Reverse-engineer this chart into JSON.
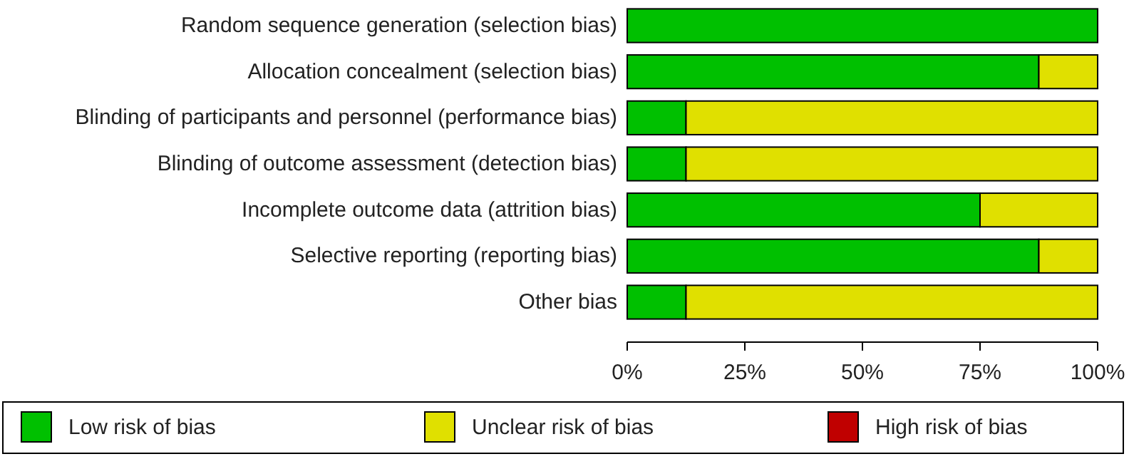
{
  "chart_data": {
    "type": "bar",
    "orientation": "horizontal",
    "stacked": true,
    "categories": [
      "Random sequence generation (selection bias)",
      "Allocation concealment (selection bias)",
      "Blinding of participants and personnel (performance bias)",
      "Blinding of outcome assessment (detection bias)",
      "Incomplete outcome data (attrition bias)",
      "Selective reporting (reporting bias)",
      "Other bias"
    ],
    "series": [
      {
        "name": "Low risk of bias",
        "color": "#00c000",
        "values": [
          100,
          87.5,
          12.5,
          12.5,
          75,
          87.5,
          12.5
        ]
      },
      {
        "name": "Unclear risk of bias",
        "color": "#e0e000",
        "values": [
          0,
          12.5,
          87.5,
          87.5,
          25,
          12.5,
          87.5
        ]
      },
      {
        "name": "High risk of bias",
        "color": "#c00000",
        "values": [
          0,
          0,
          0,
          0,
          0,
          0,
          0
        ]
      }
    ],
    "xlim": [
      0,
      100
    ],
    "xticks": [
      {
        "value": 0,
        "label": "0%"
      },
      {
        "value": 25,
        "label": "25%"
      },
      {
        "value": 50,
        "label": "50%"
      },
      {
        "value": 75,
        "label": "75%"
      },
      {
        "value": 100,
        "label": "100%"
      }
    ],
    "legend": "bottom",
    "grid": false
  }
}
